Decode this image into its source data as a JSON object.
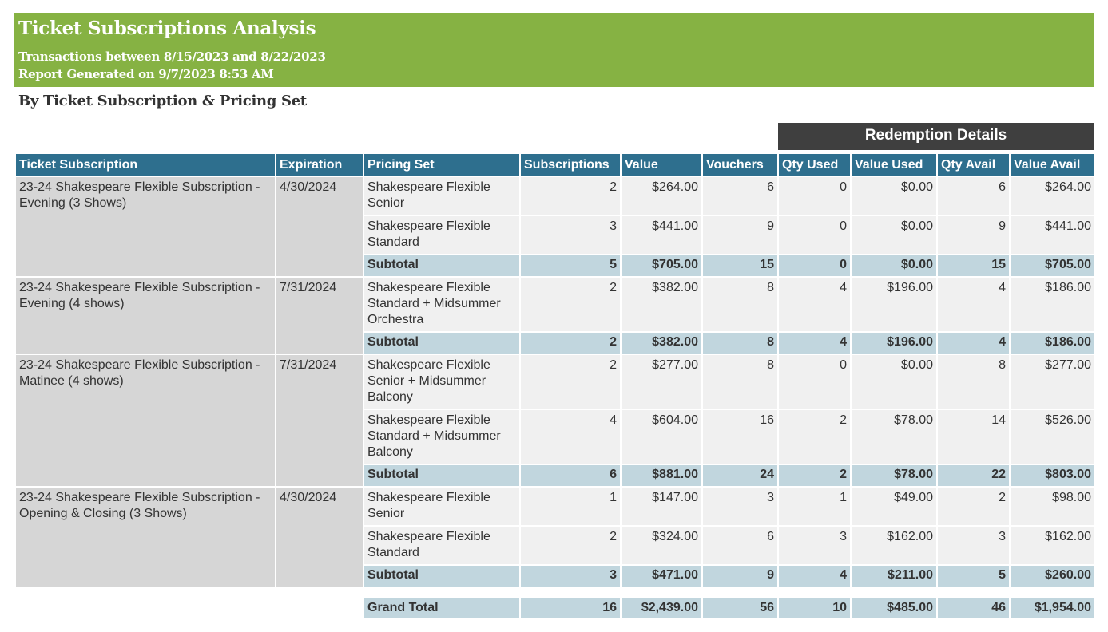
{
  "header": {
    "title": "Ticket Subscriptions Analysis",
    "range": "Transactions between 8/15/2023 and 8/22/2023",
    "generated": "Report Generated on 9/7/2023 8:53 AM"
  },
  "section_title": "By Ticket Subscription & Pricing Set",
  "redemption_header": "Redemption Details",
  "columns": [
    "Ticket Subscription",
    "Expiration",
    "Pricing Set",
    "Subscriptions",
    "Value",
    "Vouchers",
    "Qty Used",
    "Value Used",
    "Qty Avail",
    "Value Avail"
  ],
  "groups": [
    {
      "subscription": "23-24 Shakespeare Flexible Subscription - Evening (3 Shows)",
      "expiration": "4/30/2024",
      "rows": [
        {
          "pricing_set": "Shakespeare Flexible Senior",
          "subscriptions": "2",
          "value": "$264.00",
          "vouchers": "6",
          "qty_used": "0",
          "value_used": "$0.00",
          "qty_avail": "6",
          "value_avail": "$264.00"
        },
        {
          "pricing_set": "Shakespeare Flexible Standard",
          "subscriptions": "3",
          "value": "$441.00",
          "vouchers": "9",
          "qty_used": "0",
          "value_used": "$0.00",
          "qty_avail": "9",
          "value_avail": "$441.00"
        }
      ],
      "subtotal": {
        "label": "Subtotal",
        "subscriptions": "5",
        "value": "$705.00",
        "vouchers": "15",
        "qty_used": "0",
        "value_used": "$0.00",
        "qty_avail": "15",
        "value_avail": "$705.00"
      }
    },
    {
      "subscription": "23-24 Shakespeare Flexible Subscription - Evening (4 shows)",
      "expiration": "7/31/2024",
      "rows": [
        {
          "pricing_set": "Shakespeare Flexible Standard + Midsummer Orchestra",
          "subscriptions": "2",
          "value": "$382.00",
          "vouchers": "8",
          "qty_used": "4",
          "value_used": "$196.00",
          "qty_avail": "4",
          "value_avail": "$186.00"
        }
      ],
      "subtotal": {
        "label": "Subtotal",
        "subscriptions": "2",
        "value": "$382.00",
        "vouchers": "8",
        "qty_used": "4",
        "value_used": "$196.00",
        "qty_avail": "4",
        "value_avail": "$186.00"
      }
    },
    {
      "subscription": "23-24 Shakespeare Flexible Subscription - Matinee (4 shows)",
      "expiration": "7/31/2024",
      "rows": [
        {
          "pricing_set": "Shakespeare Flexible Senior + Midsummer Balcony",
          "subscriptions": "2",
          "value": "$277.00",
          "vouchers": "8",
          "qty_used": "0",
          "value_used": "$0.00",
          "qty_avail": "8",
          "value_avail": "$277.00"
        },
        {
          "pricing_set": "Shakespeare Flexible Standard + Midsummer Balcony",
          "subscriptions": "4",
          "value": "$604.00",
          "vouchers": "16",
          "qty_used": "2",
          "value_used": "$78.00",
          "qty_avail": "14",
          "value_avail": "$526.00"
        }
      ],
      "subtotal": {
        "label": "Subtotal",
        "subscriptions": "6",
        "value": "$881.00",
        "vouchers": "24",
        "qty_used": "2",
        "value_used": "$78.00",
        "qty_avail": "22",
        "value_avail": "$803.00"
      }
    },
    {
      "subscription": "23-24 Shakespeare Flexible Subscription - Opening & Closing (3 Shows)",
      "expiration": "4/30/2024",
      "rows": [
        {
          "pricing_set": "Shakespeare Flexible Senior",
          "subscriptions": "1",
          "value": "$147.00",
          "vouchers": "3",
          "qty_used": "1",
          "value_used": "$49.00",
          "qty_avail": "2",
          "value_avail": "$98.00"
        },
        {
          "pricing_set": "Shakespeare Flexible Standard",
          "subscriptions": "2",
          "value": "$324.00",
          "vouchers": "6",
          "qty_used": "3",
          "value_used": "$162.00",
          "qty_avail": "3",
          "value_avail": "$162.00"
        }
      ],
      "subtotal": {
        "label": "Subtotal",
        "subscriptions": "3",
        "value": "$471.00",
        "vouchers": "9",
        "qty_used": "4",
        "value_used": "$211.00",
        "qty_avail": "5",
        "value_avail": "$260.00"
      }
    }
  ],
  "grand_total": {
    "label": "Grand Total",
    "subscriptions": "16",
    "value": "$2,439.00",
    "vouchers": "56",
    "qty_used": "10",
    "value_used": "$485.00",
    "qty_avail": "46",
    "value_avail": "$1,954.00"
  }
}
